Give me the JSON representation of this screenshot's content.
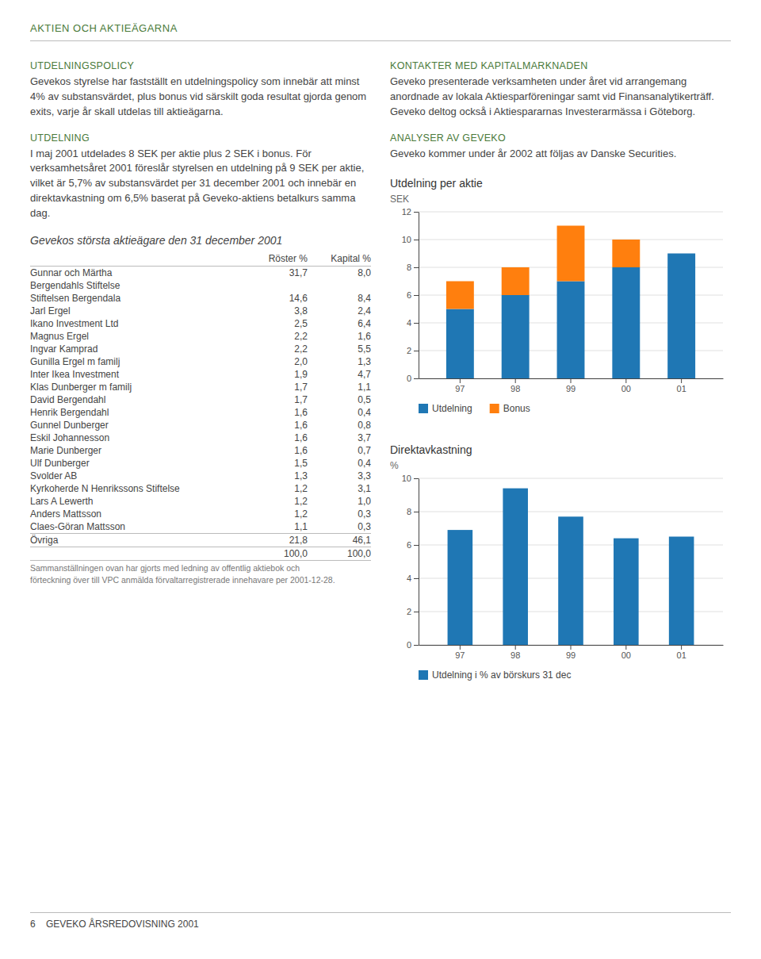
{
  "page_title": "AKTIEN OCH AKTIEÄGARNA",
  "sections_left": [
    {
      "heading": "UTDELNINGSPOLICY",
      "body": "Gevekos styrelse har fastställt en utdelningspolicy som innebär att minst 4% av substansvärdet, plus bonus vid särskilt goda resultat gjorda genom exits, varje år skall utdelas till aktieägarna."
    },
    {
      "heading": "UTDELNING",
      "body": "I maj 2001 utdelades 8 SEK per aktie plus 2 SEK i bonus. För verksamhetsåret 2001 föreslår styrelsen en utdelning på 9 SEK per aktie, vilket är 5,7% av substansvärdet per 31 december 2001 och innebär en direktavkastning om 6,5% baserat på Geveko-aktiens betalkurs samma dag."
    }
  ],
  "sections_right": [
    {
      "heading": "KONTAKTER MED KAPITALMARKNADEN",
      "body": "Geveko presenterade verksamheten under året vid arrangemang anordnade av lokala Aktiesparföreningar samt vid Finansanalytikerträff. Geveko deltog också i Aktiespararnas Investerarmässa i Göteborg."
    },
    {
      "heading": "ANALYSER AV GEVEKO",
      "body": "Geveko kommer under år 2002 att följas av Danske Securities."
    }
  ],
  "table": {
    "title": "Gevekos största aktieägare den 31 december 2001",
    "columns": [
      "Röster %",
      "Kapital %"
    ],
    "rows": [
      {
        "name": "Gunnar och Märtha",
        "cells": [
          "31,7",
          "8,0"
        ]
      },
      {
        "name": "Bergendahls Stiftelse"
      },
      {
        "name": "Stiftelsen Bergendala",
        "cells": [
          "14,6",
          "8,4"
        ]
      },
      {
        "name": "Jarl Ergel",
        "cells": [
          "3,8",
          "2,4"
        ]
      },
      {
        "name": "Ikano Investment Ltd",
        "cells": [
          "2,5",
          "6,4"
        ]
      },
      {
        "name": "Magnus Ergel",
        "cells": [
          "2,2",
          "1,6"
        ]
      },
      {
        "name": "Ingvar Kamprad",
        "cells": [
          "2,2",
          "5,5"
        ]
      },
      {
        "name": "Gunilla Ergel m familj",
        "cells": [
          "2,0",
          "1,3"
        ]
      },
      {
        "name": "Inter Ikea Investment",
        "cells": [
          "1,9",
          "4,7"
        ]
      },
      {
        "name": "Klas Dunberger m familj",
        "cells": [
          "1,7",
          "1,1"
        ]
      },
      {
        "name": "David Bergendahl",
        "cells": [
          "1,7",
          "0,5"
        ]
      },
      {
        "name": "Henrik Bergendahl",
        "cells": [
          "1,6",
          "0,4"
        ]
      },
      {
        "name": "Gunnel Dunberger",
        "cells": [
          "1,6",
          "0,8"
        ]
      },
      {
        "name": "Eskil Johannesson",
        "cells": [
          "1,6",
          "3,7"
        ]
      },
      {
        "name": "Marie Dunberger",
        "cells": [
          "1,6",
          "0,7"
        ]
      },
      {
        "name": "Ulf Dunberger",
        "cells": [
          "1,5",
          "0,4"
        ]
      },
      {
        "name": "Svolder AB",
        "cells": [
          "1,3",
          "3,3"
        ]
      },
      {
        "name": "Kyrkoherde N Henrikssons Stiftelse",
        "cells": [
          "1,2",
          "3,1"
        ]
      },
      {
        "name": "Lars A Lewerth",
        "cells": [
          "1,2",
          "1,0"
        ]
      },
      {
        "name": "Anders Mattsson",
        "cells": [
          "1,2",
          "0,3"
        ]
      },
      {
        "name": "Claes-Göran Mattsson",
        "cells": [
          "1,1",
          "0,3"
        ]
      },
      {
        "name": "Övriga",
        "cells": [
          "21,8",
          "46,1"
        ]
      },
      {
        "cells": [
          "100,0",
          "100,0"
        ]
      }
    ],
    "footnote": [
      "Sammanställningen ovan har gjorts med ledning av offentlig aktiebok och",
      "förteckning över till VPC anmälda förvaltarregistrerade innehavare per 2001-12-28."
    ]
  },
  "footer": "6    GEVEKO ÅRSREDOVISNING 2001",
  "chart_data": [
    {
      "type": "bar",
      "title": "Utdelning per aktie",
      "ylabel": "SEK",
      "categories": [
        "97",
        "98",
        "99",
        "00",
        "01"
      ],
      "series": [
        {
          "name": "Utdelning",
          "values": [
            5,
            6,
            7,
            8,
            9
          ]
        },
        {
          "name": "Bonus",
          "values": [
            2,
            2,
            4,
            2,
            0
          ]
        }
      ],
      "stacked": true,
      "ylim": [
        0,
        12
      ],
      "yticks": [
        0,
        2,
        4,
        6,
        8,
        10,
        12
      ],
      "grid": true,
      "legend": "bottom"
    },
    {
      "type": "bar",
      "title": "Direktavkastning",
      "ylabel": "%",
      "categories": [
        "97",
        "98",
        "99",
        "00",
        "01"
      ],
      "series": [
        {
          "name": "Utdelning i % av börskurs 31 dec",
          "values": [
            6.9,
            9.4,
            7.7,
            6.4,
            6.5
          ]
        }
      ],
      "ylim": [
        0,
        10
      ],
      "yticks": [
        0,
        2,
        4,
        6,
        8,
        10
      ],
      "grid": true,
      "legend": "bottom"
    }
  ]
}
